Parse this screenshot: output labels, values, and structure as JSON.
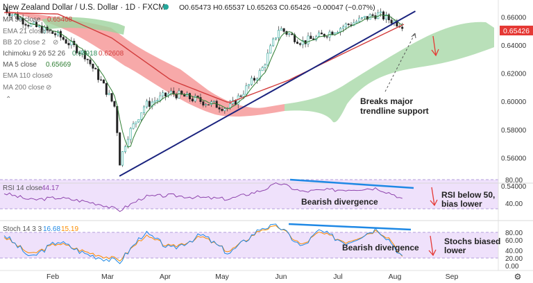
{
  "header": {
    "title": "New Zealand Dollar / U.S. Dollar · 1D · FXCM",
    "ohlc": "O0.65473 H0.65537 L0.65263 C0.65426 −0.00047 (−0.07%)"
  },
  "indicators": [
    {
      "label": "MA 50 close",
      "value": "0.65468",
      "color": "#d23c3c"
    },
    {
      "label": "EMA 21 close",
      "value": "",
      "color": "#888888"
    },
    {
      "label": "BB 20 close 2",
      "value": "",
      "color": "#888888"
    },
    {
      "label": "Ichimoku 9 26 52 26",
      "value": "0.64918",
      "value2": "0.62608",
      "color": "#2e8b57",
      "color2": "#d23c3c"
    },
    {
      "label": "MA 5 close",
      "value": "0.65669",
      "color": "#2e7d32"
    },
    {
      "label": "EMA 110 close",
      "value": "",
      "color": "#888888"
    },
    {
      "label": "MA 200 close",
      "value": "",
      "color": "#888888"
    }
  ],
  "price_axis": {
    "ticks": [
      "0.66000",
      "0.64000",
      "0.62000",
      "0.60000",
      "0.58000",
      "0.56000",
      "0.54000"
    ],
    "current_price": "0.65426",
    "current_price_color": "#e53935"
  },
  "x_axis": {
    "ticks": [
      "Feb",
      "Mar",
      "Apr",
      "May",
      "Jun",
      "Jul",
      "Aug",
      "Sep"
    ]
  },
  "annotations": {
    "trendline": [
      "Breaks major",
      "trendline support"
    ],
    "rsi_divergence": "Bearish divergence",
    "rsi_note": [
      "RSI below 50,",
      "bias lower"
    ],
    "stoch_divergence": "Bearish divergence",
    "stoch_note": [
      "Stochs biased",
      "lower"
    ]
  },
  "rsi_panel": {
    "label": "RSI 14 close",
    "value": "44.17",
    "value_color": "#8e44ad",
    "ticks": [
      "80.00",
      "40.00"
    ]
  },
  "stoch_panel": {
    "label": "Stoch 14 3 3",
    "k_value": "16.68",
    "d_value": "15.19",
    "k_color": "#1e88e5",
    "d_color": "#fb8c00",
    "ticks": [
      "80.00",
      "60.00",
      "40.00",
      "20.00",
      "0.00"
    ]
  },
  "chart_data": {
    "type": "line",
    "instrument": "NZDUSD",
    "timeframe": "1D",
    "x_labels": [
      "Feb",
      "Mar",
      "Apr",
      "May",
      "Jun",
      "Jul",
      "Aug",
      "Sep"
    ],
    "price_ylim": [
      0.545,
      0.668
    ],
    "close_series": [
      [
        "Jan 18",
        0.6655
      ],
      [
        "Feb 1",
        0.654
      ],
      [
        "Feb 15",
        0.647
      ],
      [
        "Mar 1",
        0.633
      ],
      [
        "Mar 10",
        0.613
      ],
      [
        "Mar 17",
        0.595
      ],
      [
        "Mar 19",
        0.556
      ],
      [
        "Mar 23",
        0.575
      ],
      [
        "Apr 1",
        0.597
      ],
      [
        "Apr 15",
        0.606
      ],
      [
        "May 1",
        0.6
      ],
      [
        "May 15",
        0.595
      ],
      [
        "Jun 1",
        0.622
      ],
      [
        "Jun 10",
        0.652
      ],
      [
        "Jun 22",
        0.642
      ],
      [
        "Jul 1",
        0.646
      ],
      [
        "Jul 15",
        0.654
      ],
      [
        "Jul 31",
        0.662
      ],
      [
        "Aug 10",
        0.656
      ],
      [
        "Aug 14",
        0.6543
      ]
    ],
    "ma50": [
      [
        "Jan 18",
        0.663
      ],
      [
        "Feb 15",
        0.662
      ],
      [
        "Mar 15",
        0.645
      ],
      [
        "Apr 15",
        0.615
      ],
      [
        "May 15",
        0.599
      ],
      [
        "Jun 15",
        0.615
      ],
      [
        "Jul 15",
        0.635
      ],
      [
        "Aug 14",
        0.6547
      ]
    ],
    "trendline": [
      [
        "Mar 19",
        0.547
      ],
      [
        "Aug 20",
        0.664
      ]
    ],
    "rsi": {
      "ylim": [
        0,
        100
      ],
      "values": [
        [
          "Jan 18",
          60
        ],
        [
          "Feb 1",
          45
        ],
        [
          "Feb 15",
          50
        ],
        [
          "Mar 1",
          42
        ],
        [
          "Mar 10",
          35
        ],
        [
          "Mar 19",
          22
        ],
        [
          "Apr 1",
          52
        ],
        [
          "Apr 15",
          55
        ],
        [
          "May 1",
          50
        ],
        [
          "May 15",
          47
        ],
        [
          "Jun 1",
          66
        ],
        [
          "Jun 10",
          82
        ],
        [
          "Jun 22",
          63
        ],
        [
          "Jul 1",
          66
        ],
        [
          "Jul 15",
          68
        ],
        [
          "Jul 31",
          71
        ],
        [
          "Aug 10",
          55
        ],
        [
          "Aug 14",
          44.17
        ]
      ]
    },
    "stoch": {
      "ylim": [
        0,
        100
      ],
      "k_values": [
        [
          "Jan 18",
          75
        ],
        [
          "Feb 1",
          20
        ],
        [
          "Feb 15",
          60
        ],
        [
          "Mar 1",
          30
        ],
        [
          "Mar 19",
          10
        ],
        [
          "Apr 1",
          80
        ],
        [
          "Apr 15",
          40
        ],
        [
          "May 1",
          75
        ],
        [
          "May 15",
          30
        ],
        [
          "Jun 1",
          92
        ],
        [
          "Jun 10",
          95
        ],
        [
          "Jun 22",
          45
        ],
        [
          "Jul 1",
          85
        ],
        [
          "Jul 15",
          55
        ],
        [
          "Jul 31",
          90
        ],
        [
          "Aug 7",
          60
        ],
        [
          "Aug 14",
          16.68
        ]
      ],
      "d_values": [
        [
          "Jan 18",
          70
        ],
        [
          "Feb 1",
          28
        ],
        [
          "Feb 15",
          55
        ],
        [
          "Mar 1",
          35
        ],
        [
          "Mar 19",
          15
        ],
        [
          "Apr 1",
          72
        ],
        [
          "Apr 15",
          45
        ],
        [
          "May 1",
          70
        ],
        [
          "May 15",
          35
        ],
        [
          "Jun 1",
          88
        ],
        [
          "Jun 10",
          93
        ],
        [
          "Jun 22",
          50
        ],
        [
          "Jul 1",
          80
        ],
        [
          "Jul 15",
          58
        ],
        [
          "Jul 31",
          86
        ],
        [
          "Aug 7",
          65
        ],
        [
          "Aug 14",
          15.19
        ]
      ]
    }
  }
}
